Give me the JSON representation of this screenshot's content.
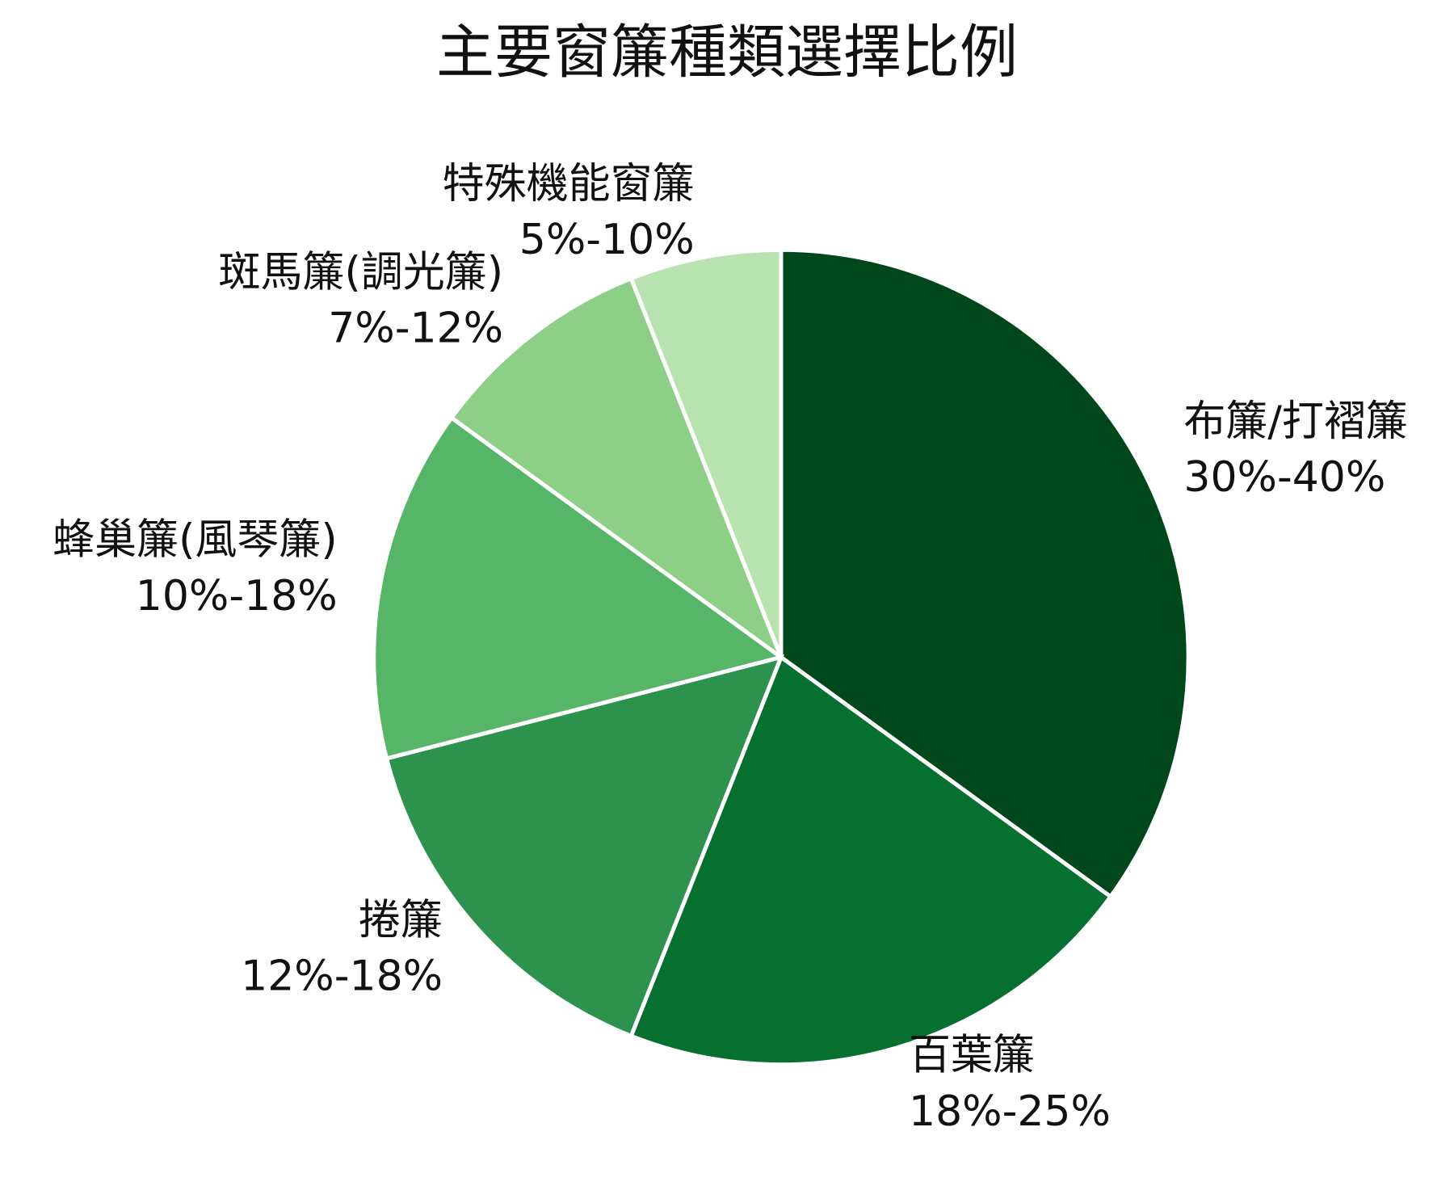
{
  "chart_data": {
    "type": "pie",
    "title": "主要窗簾種類選擇比例",
    "categories": [
      "布簾/打褶簾",
      "百葉簾",
      "捲簾",
      "蜂巢簾(風琴簾)",
      "斑馬簾(調光簾)",
      "特殊機能窗簾"
    ],
    "values": [
      35,
      21,
      15,
      14,
      9,
      6
    ],
    "range_labels": [
      "30%-40%",
      "18%-25%",
      "12%-18%",
      "10%-18%",
      "7%-12%",
      "5%-10%"
    ],
    "colors": [
      "#00471b",
      "#067030",
      "#2d924d",
      "#56b567",
      "#8ecf87",
      "#b8e3b1"
    ]
  }
}
